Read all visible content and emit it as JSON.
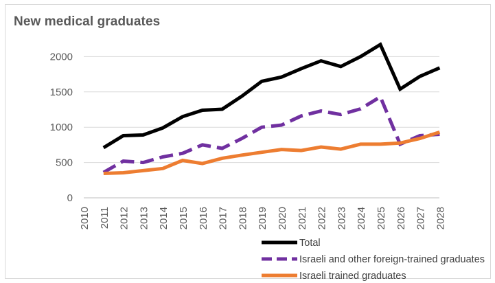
{
  "chart_data": {
    "type": "line",
    "title": "New medical graduates",
    "xlabel": "",
    "ylabel": "",
    "x": [
      "2010",
      "2011",
      "2012",
      "2013",
      "2014",
      "2015",
      "2016",
      "2017",
      "2018",
      "2019",
      "2020",
      "2021",
      "2022",
      "2023",
      "2024",
      "2025",
      "2026",
      "2027",
      "2028"
    ],
    "yticks": [
      "0",
      "500",
      "1000",
      "1500",
      "2000"
    ],
    "ylim": [
      0,
      2250
    ],
    "grid": true,
    "legend_position": "bottom-right",
    "series": [
      {
        "name": "Total",
        "color": "#000000",
        "dash": "solid",
        "values": [
          null,
          710,
          880,
          890,
          990,
          1150,
          1240,
          1255,
          1440,
          1650,
          1710,
          1830,
          1940,
          1860,
          2000,
          2170,
          1540,
          1720,
          1840
        ]
      },
      {
        "name": "Israeli and other foreign-trained graduates",
        "color": "#7030a0",
        "dash": "dashed",
        "values": [
          null,
          360,
          520,
          500,
          580,
          630,
          750,
          700,
          840,
          1000,
          1030,
          1160,
          1230,
          1180,
          1260,
          1430,
          760,
          880,
          900
        ]
      },
      {
        "name": "Israeli trained graduates",
        "color": "#ed7d31",
        "dash": "solid",
        "values": [
          null,
          345,
          355,
          385,
          415,
          530,
          485,
          560,
          605,
          645,
          685,
          670,
          720,
          690,
          760,
          760,
          775,
          840,
          930
        ]
      }
    ]
  }
}
